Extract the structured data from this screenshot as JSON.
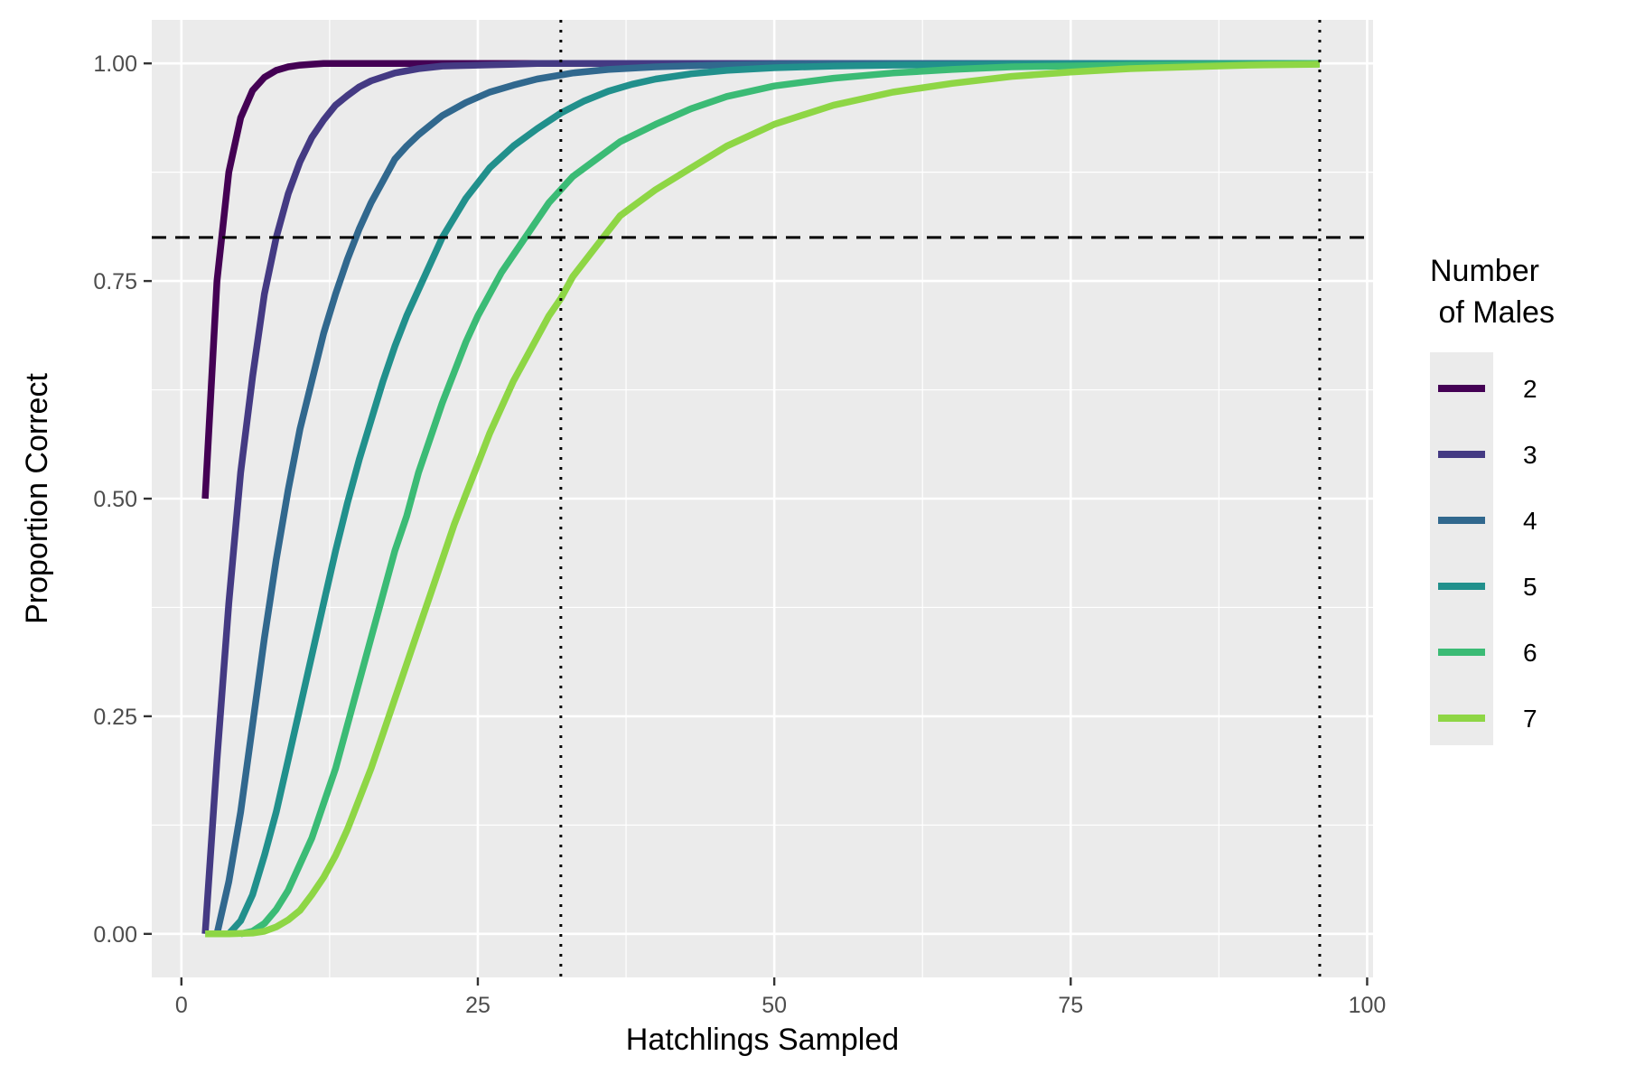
{
  "chart_data": {
    "type": "line",
    "xlabel": "Hatchlings Sampled",
    "ylabel": "Proportion Correct",
    "xlim": [
      -2.5,
      100.5
    ],
    "ylim": [
      -0.05,
      1.05
    ],
    "x_ticks": [
      0,
      25,
      50,
      75,
      100
    ],
    "x_tick_labels": [
      "0",
      "25",
      "50",
      "75",
      "100"
    ],
    "y_ticks": [
      0,
      0.25,
      0.5,
      0.75,
      1
    ],
    "y_tick_labels": [
      "0.00",
      "0.25",
      "0.50",
      "0.75",
      "1.00"
    ],
    "grid": true,
    "background": "#ebebeb",
    "legend": {
      "title_lines": [
        "Number",
        " of Males"
      ],
      "position": "right"
    },
    "reference_lines": [
      {
        "orientation": "horizontal",
        "value": 0.8,
        "style": "dashed",
        "color": "#000000"
      },
      {
        "orientation": "vertical",
        "value": 32,
        "style": "dotted",
        "color": "#000000"
      },
      {
        "orientation": "vertical",
        "value": 96,
        "style": "dotted",
        "color": "#000000"
      }
    ],
    "series": [
      {
        "name": "2",
        "color": "#440154",
        "x": [
          2,
          3,
          4,
          5,
          6,
          7,
          8,
          9,
          10,
          11,
          12,
          14,
          16,
          20,
          30,
          40,
          60,
          96
        ],
        "y": [
          0.5,
          0.75,
          0.875,
          0.9375,
          0.969,
          0.984,
          0.992,
          0.996,
          0.998,
          0.999,
          1.0,
          1.0,
          1.0,
          1.0,
          1.0,
          1.0,
          1.0,
          1.0
        ]
      },
      {
        "name": "3",
        "color": "#443A83",
        "x": [
          2,
          3,
          4,
          5,
          6,
          7,
          8,
          9,
          10,
          11,
          12,
          13,
          14,
          15,
          16,
          18,
          20,
          22,
          25,
          28,
          30,
          35,
          40,
          96
        ],
        "y": [
          0.0,
          0.2,
          0.38,
          0.53,
          0.64,
          0.735,
          0.8,
          0.85,
          0.887,
          0.915,
          0.935,
          0.952,
          0.963,
          0.973,
          0.98,
          0.989,
          0.994,
          0.997,
          0.998,
          0.999,
          1.0,
          1.0,
          1.0,
          1.0
        ]
      },
      {
        "name": "4",
        "color": "#31688E",
        "x": [
          3,
          4,
          5,
          6,
          7,
          8,
          9,
          10,
          11,
          12,
          13,
          14,
          15,
          16,
          17,
          18,
          19,
          20,
          22,
          24,
          26,
          28,
          30,
          33,
          36,
          40,
          45,
          50,
          60,
          96
        ],
        "y": [
          0.0,
          0.06,
          0.14,
          0.24,
          0.34,
          0.43,
          0.51,
          0.58,
          0.635,
          0.69,
          0.735,
          0.775,
          0.81,
          0.84,
          0.865,
          0.89,
          0.905,
          0.918,
          0.94,
          0.955,
          0.967,
          0.975,
          0.982,
          0.989,
          0.993,
          0.996,
          0.998,
          0.999,
          1.0,
          1.0
        ]
      },
      {
        "name": "5",
        "color": "#21908C",
        "x": [
          4,
          5,
          6,
          7,
          8,
          9,
          10,
          11,
          12,
          13,
          14,
          15,
          16,
          17,
          18,
          19,
          20,
          22,
          24,
          26,
          28,
          30,
          32,
          34,
          36,
          38,
          40,
          43,
          46,
          50,
          55,
          60,
          70,
          80,
          96
        ],
        "y": [
          0.0,
          0.015,
          0.045,
          0.09,
          0.14,
          0.2,
          0.26,
          0.32,
          0.38,
          0.44,
          0.495,
          0.545,
          0.59,
          0.635,
          0.675,
          0.71,
          0.74,
          0.8,
          0.845,
          0.88,
          0.905,
          0.925,
          0.943,
          0.957,
          0.968,
          0.976,
          0.982,
          0.988,
          0.992,
          0.995,
          0.997,
          0.998,
          0.999,
          1.0,
          1.0
        ]
      },
      {
        "name": "6",
        "color": "#3BBB75",
        "x": [
          5,
          6,
          7,
          8,
          9,
          10,
          11,
          12,
          13,
          14,
          15,
          16,
          17,
          18,
          19,
          20,
          21,
          22,
          23,
          24,
          25,
          27,
          29,
          31,
          33,
          35,
          37,
          40,
          43,
          46,
          50,
          55,
          60,
          65,
          70,
          80,
          90,
          96
        ],
        "y": [
          0.0,
          0.003,
          0.012,
          0.028,
          0.05,
          0.08,
          0.11,
          0.15,
          0.19,
          0.24,
          0.29,
          0.34,
          0.39,
          0.44,
          0.48,
          0.53,
          0.57,
          0.61,
          0.645,
          0.68,
          0.71,
          0.76,
          0.8,
          0.84,
          0.87,
          0.89,
          0.91,
          0.93,
          0.948,
          0.962,
          0.974,
          0.983,
          0.989,
          0.993,
          0.996,
          0.998,
          0.999,
          1.0
        ]
      },
      {
        "name": "7",
        "color": "#8ED645",
        "x": [
          2,
          4,
          6,
          7,
          8,
          9,
          10,
          11,
          12,
          13,
          14,
          15,
          16,
          17,
          18,
          19,
          20,
          21,
          22,
          23,
          24,
          25,
          26,
          27,
          28,
          29,
          30,
          31,
          32,
          33,
          35,
          37,
          40,
          43,
          46,
          50,
          55,
          60,
          65,
          70,
          75,
          80,
          85,
          90,
          96
        ],
        "y": [
          0.0,
          0.0,
          0.001,
          0.003,
          0.008,
          0.016,
          0.027,
          0.045,
          0.065,
          0.09,
          0.12,
          0.155,
          0.19,
          0.23,
          0.27,
          0.31,
          0.35,
          0.39,
          0.43,
          0.47,
          0.505,
          0.54,
          0.575,
          0.605,
          0.635,
          0.66,
          0.685,
          0.71,
          0.73,
          0.755,
          0.79,
          0.825,
          0.855,
          0.88,
          0.905,
          0.93,
          0.952,
          0.967,
          0.977,
          0.985,
          0.99,
          0.994,
          0.996,
          0.998,
          0.999
        ]
      }
    ]
  }
}
